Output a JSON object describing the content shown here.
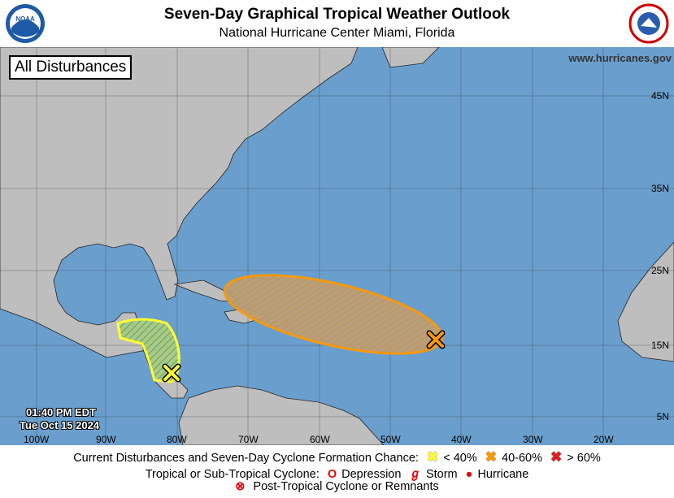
{
  "header": {
    "title": "Seven-Day Graphical Tropical Weather Outlook",
    "subtitle": "National Hurricane Center  Miami, Florida",
    "left_logo": "NOAA",
    "right_logo": "National Weather Service"
  },
  "map": {
    "panel_label": "All Disturbances",
    "url": "www.hurricanes.gov",
    "lat_labels": [
      "45N",
      "35N",
      "25N",
      "15N",
      "5N"
    ],
    "lon_labels": [
      "100W",
      "90W",
      "80W",
      "70W",
      "60W",
      "50W",
      "40W",
      "30W",
      "20W"
    ],
    "time": "01:40 PM EDT",
    "date": "Tue Oct 15 2024",
    "colors": {
      "ocean": "#6a9fcd",
      "land": "#bebebe",
      "low": "#ffff33",
      "medium": "#ff9900",
      "high": "#e31a1c"
    },
    "disturbances": [
      {
        "chance": "low",
        "color": "#ffff33",
        "location": "western Caribbean / Central America"
      },
      {
        "chance": "medium",
        "color": "#ff9900",
        "location": "central tropical Atlantic"
      }
    ]
  },
  "legend": {
    "row1_label": "Current Disturbances and Seven-Day Cyclone Formation Chance:",
    "low": "< 40%",
    "medium": "40-60%",
    "high": "> 60%",
    "row2_label": "Tropical or Sub-Tropical Cyclone:",
    "depression": "Depression",
    "storm": "Storm",
    "hurricane": "Hurricane",
    "row3": "Post-Tropical Cyclone or Remnants"
  }
}
